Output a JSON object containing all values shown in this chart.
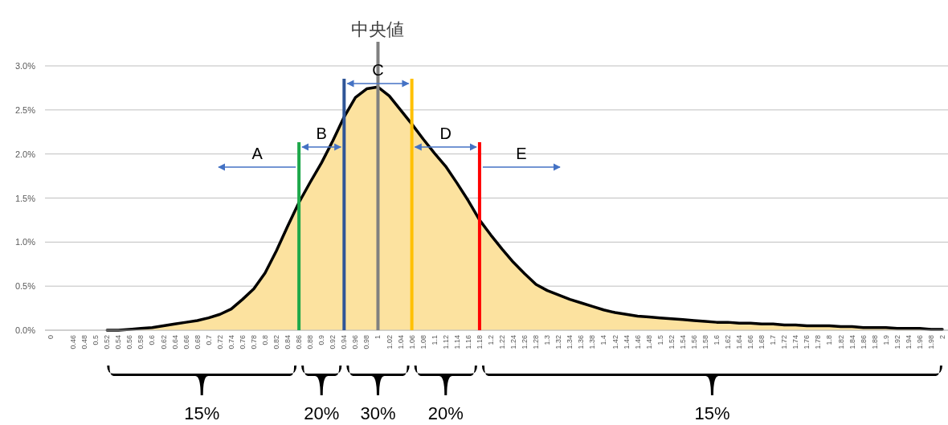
{
  "chart_data": {
    "type": "area",
    "categories": [
      "0",
      null,
      "0.46",
      "0.48",
      "0.5",
      "0.52",
      "0.54",
      "0.56",
      "0.58",
      "0.6",
      "0.62",
      "0.64",
      "0.66",
      "0.68",
      "0.7",
      "0.72",
      "0.74",
      "0.76",
      "0.78",
      "0.8",
      "0.82",
      "0.84",
      "0.86",
      "0.88",
      "0.9",
      "0.92",
      "0.94",
      "0.96",
      "0.98",
      "1",
      "1.02",
      "1.04",
      "1.06",
      "1.08",
      "1.1",
      "1.12",
      "1.14",
      "1.16",
      "1.18",
      "1.2",
      "1.22",
      "1.24",
      "1.26",
      "1.28",
      "1.3",
      "1.32",
      "1.34",
      "1.36",
      "1.38",
      "1.4",
      "1.42",
      "1.44",
      "1.46",
      "1.48",
      "1.5",
      "1.52",
      "1.54",
      "1.56",
      "1.58",
      "1.6",
      "1.62",
      "1.64",
      "1.66",
      "1.68",
      "1.7",
      "1.72",
      "1.74",
      "1.76",
      "1.78",
      "1.8",
      "1.82",
      "1.84",
      "1.86",
      "1.88",
      "1.9",
      "1.92",
      "1.94",
      "1.96",
      "1.98",
      "2"
    ],
    "series": [
      {
        "color": "#fce29f",
        "values": [
          null,
          null,
          null,
          null,
          null,
          0,
          0,
          0.01,
          0.02,
          0.03,
          0.05,
          0.07,
          0.09,
          0.11,
          0.14,
          0.18,
          0.24,
          0.35,
          0.47,
          0.65,
          0.9,
          1.18,
          1.45,
          1.68,
          1.9,
          2.15,
          2.42,
          2.64,
          2.74,
          2.76,
          2.66,
          2.5,
          2.34,
          2.17,
          2.01,
          1.86,
          1.67,
          1.47,
          1.25,
          1.08,
          0.92,
          0.77,
          0.64,
          0.52,
          0.45,
          0.4,
          0.35,
          0.31,
          0.27,
          0.23,
          0.2,
          0.18,
          0.16,
          0.15,
          0.14,
          0.13,
          0.12,
          0.11,
          0.1,
          0.09,
          0.09,
          0.08,
          0.08,
          0.07,
          0.07,
          0.06,
          0.06,
          0.05,
          0.05,
          0.05,
          0.04,
          0.04,
          0.03,
          0.03,
          0.03,
          0.02,
          0.02,
          0.02,
          0.01,
          0.01
        ]
      }
    ],
    "ylim": [
      0,
      3
    ],
    "yticks": [
      {
        "value": 0,
        "label": "0.0%"
      },
      {
        "value": 0.5,
        "label": "0.5%"
      },
      {
        "value": 1,
        "label": "1.0%"
      },
      {
        "value": 1.5,
        "label": "1.5%"
      },
      {
        "value": 2,
        "label": "2.0%"
      },
      {
        "value": 2.5,
        "label": "2.5%"
      },
      {
        "value": 3,
        "label": "3.0%"
      }
    ],
    "grid": "y",
    "ref_lines": [
      {
        "axis": "x",
        "value": "0.86",
        "color": "#1ea84a"
      },
      {
        "axis": "x",
        "value": "0.94",
        "color": "#2f5597"
      },
      {
        "axis": "x",
        "value": "1",
        "label": "中央値",
        "color": "#808080"
      },
      {
        "axis": "x",
        "value": "1.06",
        "color": "#ffc000"
      },
      {
        "axis": "x",
        "value": "1.18",
        "color": "#ff0000"
      }
    ],
    "annotations": [
      "A",
      "B",
      "C",
      "D",
      "E",
      "15%",
      "20%",
      "30%",
      "20%",
      "15%"
    ]
  }
}
